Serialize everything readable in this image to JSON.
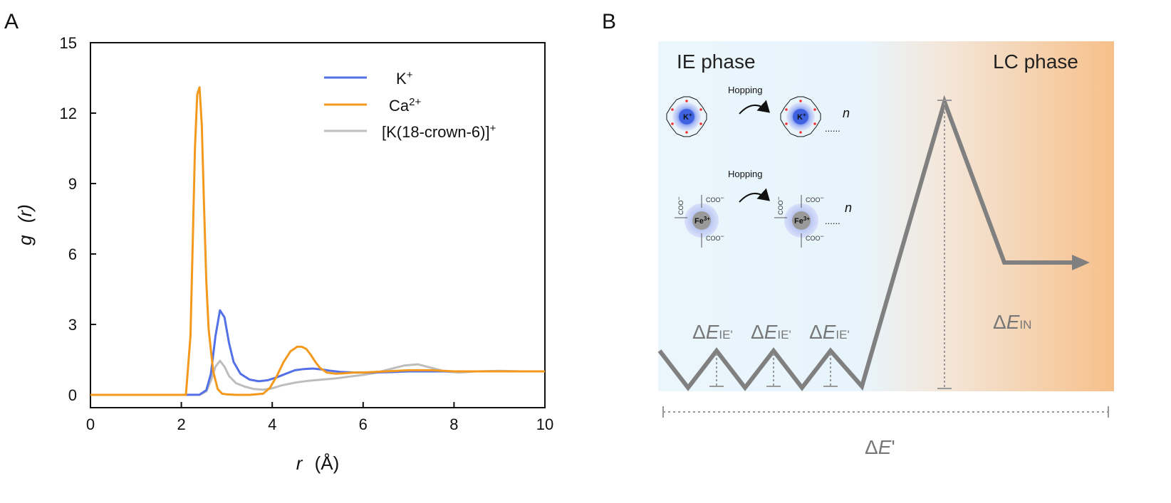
{
  "panels": {
    "a_label": "A",
    "b_label": "B"
  },
  "chart_data": [
    {
      "type": "line",
      "panel": "A",
      "xlabel_var": "r",
      "xlabel_unit": "(Å)",
      "ylabel_var": "g",
      "ylabel_arg": "(r)",
      "xlim": [
        0,
        10
      ],
      "ylim": [
        -0.5,
        15
      ],
      "xticks": [
        0,
        2,
        4,
        6,
        8,
        10
      ],
      "xtick_labels": [
        "0",
        "2",
        "4",
        "6",
        "8",
        "10"
      ],
      "yticks": [
        0,
        3,
        6,
        9,
        12,
        15
      ],
      "ytick_labels": [
        "0",
        "3",
        "6",
        "9",
        "12",
        "15"
      ],
      "legend_position": "top-right",
      "grid": false,
      "series": [
        {
          "name": "K+",
          "label_base": "K",
          "label_sup": "+",
          "color": "#5470e6",
          "x": [
            0,
            2.0,
            2.4,
            2.55,
            2.65,
            2.75,
            2.85,
            2.95,
            3.05,
            3.15,
            3.3,
            3.5,
            3.7,
            3.9,
            4.1,
            4.3,
            4.5,
            4.7,
            4.9,
            5.1,
            5.3,
            5.5,
            5.8,
            6.2,
            6.6,
            7.0,
            7.5,
            8.0,
            8.5,
            9.0,
            9.5,
            10.0
          ],
          "y": [
            0,
            0,
            0.01,
            0.2,
            0.9,
            2.5,
            3.6,
            3.3,
            2.2,
            1.4,
            0.9,
            0.65,
            0.58,
            0.62,
            0.75,
            0.9,
            1.05,
            1.1,
            1.12,
            1.08,
            1.02,
            0.98,
            0.95,
            0.95,
            0.97,
            1.0,
            1.0,
            1.0,
            1.0,
            1.0,
            1.0,
            1.0
          ]
        },
        {
          "name": "Ca2+",
          "label_base": "Ca",
          "label_sup": "2+",
          "color": "#f39a1e",
          "x": [
            0,
            2.1,
            2.2,
            2.25,
            2.3,
            2.35,
            2.4,
            2.45,
            2.5,
            2.55,
            2.6,
            2.7,
            2.8,
            2.9,
            3.0,
            3.2,
            3.5,
            3.8,
            3.95,
            4.1,
            4.25,
            4.4,
            4.55,
            4.65,
            4.75,
            4.85,
            4.95,
            5.05,
            5.2,
            5.4,
            5.6,
            5.8,
            6.0,
            6.5,
            7.0,
            7.5,
            8.0,
            8.5,
            9.0,
            9.5,
            10.0
          ],
          "y": [
            0,
            0,
            2.5,
            6.5,
            10.5,
            12.8,
            13.1,
            11.5,
            8.0,
            4.8,
            2.8,
            1.0,
            0.25,
            0.05,
            0.02,
            0.0,
            0.0,
            0.05,
            0.3,
            0.8,
            1.4,
            1.85,
            2.05,
            2.05,
            1.95,
            1.7,
            1.4,
            1.15,
            0.95,
            0.9,
            0.92,
            0.95,
            0.95,
            1.0,
            1.05,
            1.05,
            1.0,
            1.0,
            1.0,
            1.0,
            1.0
          ]
        },
        {
          "name": "[K(18-crown-6)]+",
          "label_base": "[K(18-crown-6)]",
          "label_sup": "+",
          "color": "#bdbdbd",
          "x": [
            0,
            2.4,
            2.55,
            2.65,
            2.75,
            2.85,
            2.95,
            3.05,
            3.2,
            3.4,
            3.6,
            3.8,
            4.0,
            4.2,
            4.5,
            4.8,
            5.1,
            5.4,
            5.7,
            6.0,
            6.3,
            6.6,
            6.9,
            7.2,
            7.5,
            7.8,
            8.1,
            8.5,
            9.0,
            9.5,
            10.0
          ],
          "y": [
            0,
            0,
            0.15,
            0.6,
            1.2,
            1.45,
            1.2,
            0.8,
            0.5,
            0.35,
            0.25,
            0.22,
            0.28,
            0.4,
            0.52,
            0.6,
            0.65,
            0.7,
            0.78,
            0.85,
            0.95,
            1.1,
            1.25,
            1.3,
            1.15,
            1.0,
            0.95,
            1.0,
            1.02,
            1.0,
            1.0
          ]
        }
      ]
    }
  ],
  "diagram": {
    "ie_phase": "IE phase",
    "lc_phase": "LC phase",
    "hopping_1": "Hopping",
    "hopping_2": "Hopping",
    "n_1": "n",
    "n_2": "n",
    "dots": "......",
    "k_ion": "K",
    "k_ion_sup": "+",
    "fe_ion": "Fe",
    "fe_ion_sup": "3+",
    "coo": "COO",
    "coo_sup": "−",
    "delta": "Δ",
    "de_var": "E",
    "de_ie_sub": "IE'",
    "de_in_sub": "IN",
    "de_total_suffix": "'",
    "gradient_colors": {
      "left": "#eaf6fc",
      "right": "#f7c08a"
    },
    "line_color": "#808080"
  }
}
